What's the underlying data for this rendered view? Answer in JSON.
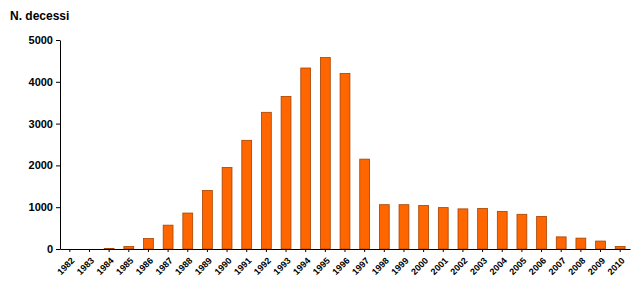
{
  "chart_data": {
    "type": "bar",
    "y_label": "N. decessi",
    "categories": [
      "1982",
      "1983",
      "1984",
      "1985",
      "1986",
      "1987",
      "1988",
      "1989",
      "1990",
      "1991",
      "1992",
      "1993",
      "1994",
      "1995",
      "1996",
      "1997",
      "1998",
      "1999",
      "2000",
      "2001",
      "2002",
      "2003",
      "2004",
      "2005",
      "2006",
      "2007",
      "2008",
      "2009",
      "2010"
    ],
    "values": [
      0,
      0,
      10,
      60,
      250,
      570,
      860,
      1400,
      1950,
      2600,
      3270,
      3650,
      4330,
      4580,
      4200,
      2150,
      1060,
      1060,
      1040,
      990,
      960,
      970,
      900,
      830,
      780,
      290,
      260,
      190,
      60
    ],
    "color": "#ff6600",
    "ylim": [
      0,
      5000
    ],
    "yticks": [
      0,
      1000,
      2000,
      3000,
      4000,
      5000
    ],
    "grid": false
  }
}
